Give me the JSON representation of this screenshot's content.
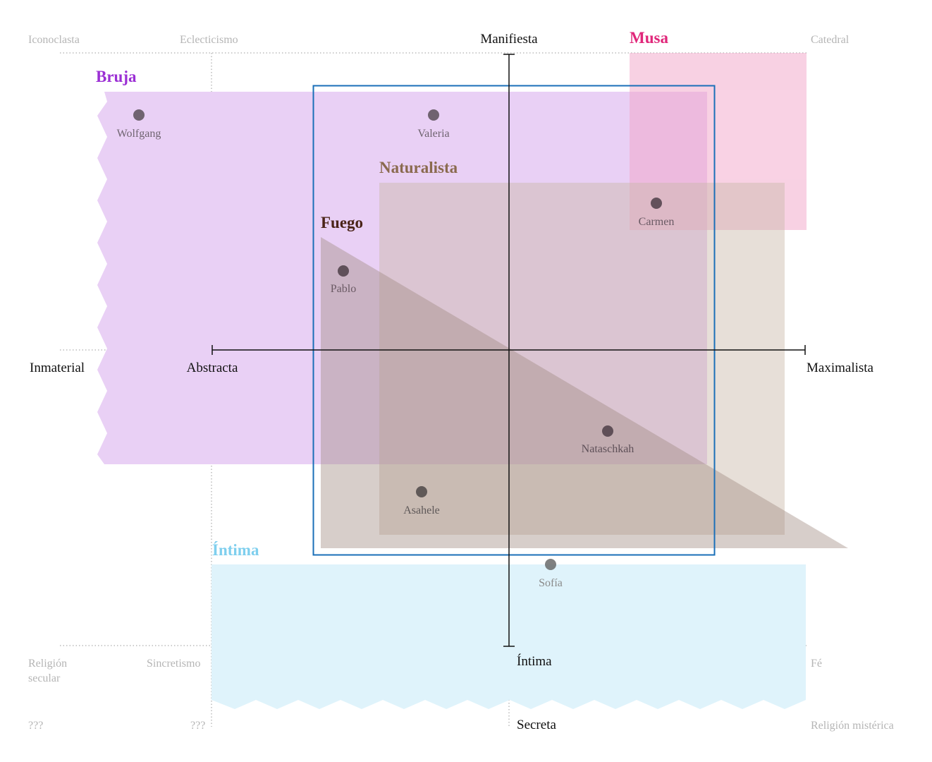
{
  "colors": {
    "bruja": "#9b2fd4",
    "bruja_fill": "#e9d0f5",
    "musa": "#e0277a",
    "musa_fill": "#f7c3da",
    "naturalista": "#8a6a4e",
    "naturalista_fill": "#c9b8a9",
    "fuego": "#4a2418",
    "fuego_fill": "#b7a39b",
    "intima": "#7fcfee",
    "intima_fill": "#dff3fb",
    "frame": "#1a6fb8",
    "axis": "#111111",
    "corner_text": "#b5b5b5",
    "point": "#5a5058"
  },
  "corner_labels": {
    "top_left": "Iconoclasta",
    "top_left_inner": "Eclecticismo",
    "top_right": "Catedral",
    "bottom_left": "Religión secular",
    "bottom_left_line1": "Religión",
    "bottom_left_line2": "secular",
    "bottom_left_inner": "Sincretismo",
    "bottom_right": "Fé",
    "far_bottom_left": "???",
    "far_bottom_left_inner": "???",
    "far_bottom_right": "Religión mistérica"
  },
  "axes": {
    "top": "Manifiesta",
    "bottom": "Íntima",
    "far_bottom": "Secreta",
    "left": "Abstracta",
    "far_left": "Inmaterial",
    "right": "Maximalista"
  },
  "regions": {
    "bruja": "Bruja",
    "musa": "Musa",
    "naturalista": "Naturalista",
    "fuego": "Fuego",
    "intima": "Íntima"
  },
  "points": [
    {
      "name": "Wolfgang"
    },
    {
      "name": "Valeria"
    },
    {
      "name": "Carmen"
    },
    {
      "name": "Pablo"
    },
    {
      "name": "Nataschkah"
    },
    {
      "name": "Asahele"
    },
    {
      "name": "Sofía"
    }
  ]
}
